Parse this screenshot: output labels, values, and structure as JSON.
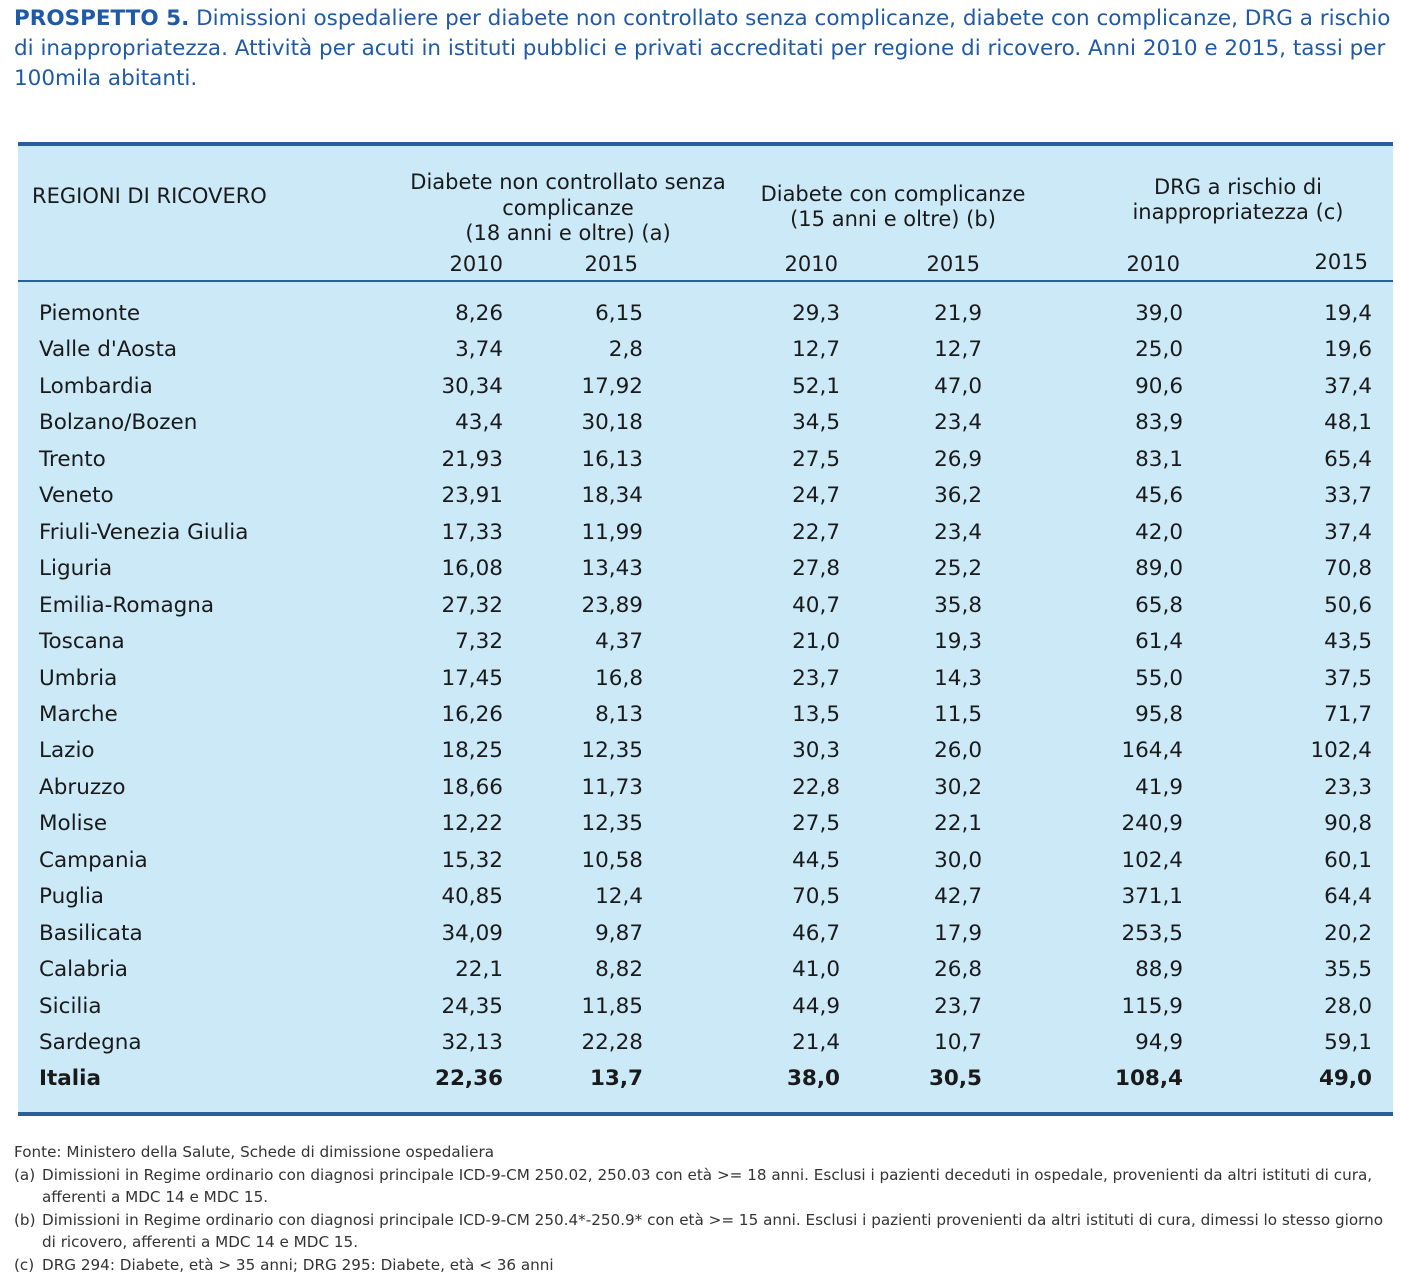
{
  "caption": {
    "lead": "PROSPETTO 5.",
    "text": " Dimissioni ospedaliere per diabete non controllato senza complicanze, diabete con complicanze, DRG a rischio di inappropriatezza. Attività per acuti in istituti pubblici e privati accreditati per regione di ricovero. Anni 2010 e 2015, tassi per 100mila abitanti."
  },
  "headers": {
    "region": "REGIONI DI RICOVERO",
    "group1": [
      "Diabete non controllato senza",
      "complicanze",
      "(18 anni e oltre) (a)"
    ],
    "group2": [
      "Diabete con complicanze",
      "(15 anni e oltre) (b)"
    ],
    "group3": [
      "DRG a rischio di",
      "inappropriatezza (c)"
    ],
    "years": [
      "2010",
      "2015",
      "2010",
      "2015",
      "2010",
      "2015"
    ]
  },
  "rows": [
    {
      "name": "Piemonte",
      "v": [
        "8,26",
        "6,15",
        "29,3",
        "21,9",
        "39,0",
        "19,4"
      ]
    },
    {
      "name": "Valle d'Aosta",
      "v": [
        "3,74",
        "2,8",
        "12,7",
        "12,7",
        "25,0",
        "19,6"
      ]
    },
    {
      "name": "Lombardia",
      "v": [
        "30,34",
        "17,92",
        "52,1",
        "47,0",
        "90,6",
        "37,4"
      ]
    },
    {
      "name": "Bolzano/Bozen",
      "v": [
        "43,4",
        "30,18",
        "34,5",
        "23,4",
        "83,9",
        "48,1"
      ]
    },
    {
      "name": "Trento",
      "v": [
        "21,93",
        "16,13",
        "27,5",
        "26,9",
        "83,1",
        "65,4"
      ]
    },
    {
      "name": "Veneto",
      "v": [
        "23,91",
        "18,34",
        "24,7",
        "36,2",
        "45,6",
        "33,7"
      ]
    },
    {
      "name": "Friuli-Venezia Giulia",
      "v": [
        "17,33",
        "11,99",
        "22,7",
        "23,4",
        "42,0",
        "37,4"
      ]
    },
    {
      "name": "Liguria",
      "v": [
        "16,08",
        "13,43",
        "27,8",
        "25,2",
        "89,0",
        "70,8"
      ]
    },
    {
      "name": "Emilia-Romagna",
      "v": [
        "27,32",
        "23,89",
        "40,7",
        "35,8",
        "65,8",
        "50,6"
      ]
    },
    {
      "name": "Toscana",
      "v": [
        "7,32",
        "4,37",
        "21,0",
        "19,3",
        "61,4",
        "43,5"
      ]
    },
    {
      "name": "Umbria",
      "v": [
        "17,45",
        "16,8",
        "23,7",
        "14,3",
        "55,0",
        "37,5"
      ]
    },
    {
      "name": "Marche",
      "v": [
        "16,26",
        "8,13",
        "13,5",
        "11,5",
        "95,8",
        "71,7"
      ]
    },
    {
      "name": "Lazio",
      "v": [
        "18,25",
        "12,35",
        "30,3",
        "26,0",
        "164,4",
        "102,4"
      ]
    },
    {
      "name": "Abruzzo",
      "v": [
        "18,66",
        "11,73",
        "22,8",
        "30,2",
        "41,9",
        "23,3"
      ]
    },
    {
      "name": "Molise",
      "v": [
        "12,22",
        "12,35",
        "27,5",
        "22,1",
        "240,9",
        "90,8"
      ]
    },
    {
      "name": "Campania",
      "v": [
        "15,32",
        "10,58",
        "44,5",
        "30,0",
        "102,4",
        "60,1"
      ]
    },
    {
      "name": "Puglia",
      "v": [
        "40,85",
        "12,4",
        "70,5",
        "42,7",
        "371,1",
        "64,4"
      ]
    },
    {
      "name": "Basilicata",
      "v": [
        "34,09",
        "9,87",
        "46,7",
        "17,9",
        "253,5",
        "20,2"
      ]
    },
    {
      "name": "Calabria",
      "v": [
        "22,1",
        "8,82",
        "41,0",
        "26,8",
        "88,9",
        "35,5"
      ]
    },
    {
      "name": "Sicilia",
      "v": [
        "24,35",
        "11,85",
        "44,9",
        "23,7",
        "115,9",
        "28,0"
      ]
    },
    {
      "name": "Sardegna",
      "v": [
        "32,13",
        "22,28",
        "21,4",
        "10,7",
        "94,9",
        "59,1"
      ]
    }
  ],
  "total": {
    "name": "Italia",
    "v": [
      "22,36",
      "13,7",
      "38,0",
      "30,5",
      "108,4",
      "49,0"
    ]
  },
  "notes": {
    "source": "Fonte: Ministero della Salute, Schede di dimissione ospedaliera",
    "a_label": "(a)",
    "a": "Dimissioni in Regime ordinario con diagnosi principale ICD-9-CM 250.02, 250.03 con età >= 18 anni. Esclusi i pazienti deceduti in ospedale, provenienti da altri istituti di cura, afferenti a MDC 14 e MDC 15.",
    "b_label": "(b)",
    "b": "Dimissioni in Regime ordinario con diagnosi principale ICD-9-CM 250.4*-250.9* con età >= 15 anni. Esclusi i pazienti provenienti da altri istituti di cura, dimessi lo stesso giorno di ricovero, afferenti a MDC 14 e MDC 15.",
    "c_label": "(c)",
    "c": "DRG 294: Diabete, età > 35 anni; DRG 295: Diabete, età < 36 anni"
  },
  "colors": {
    "caption": "#1f5aa6",
    "table_bg": "#cce9f8",
    "rule": "#2a5d9c"
  }
}
